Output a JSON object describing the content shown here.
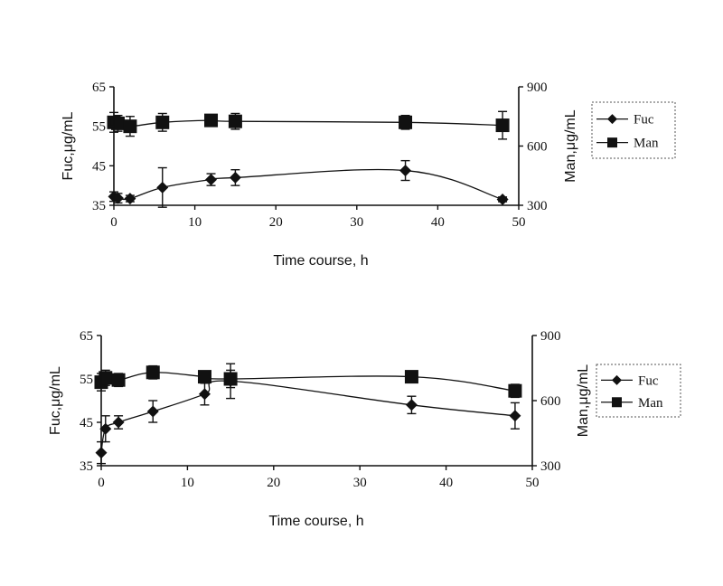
{
  "chart_data": [
    {
      "type": "line",
      "title": "",
      "xlabel": "Time course, h",
      "ylabel": "Fuc,μg/mL",
      "y2label": "Man,μg/mL",
      "xlim": [
        0,
        50
      ],
      "ylim": [
        35,
        65
      ],
      "y2lim": [
        300,
        900
      ],
      "xticks": [
        "0",
        "10",
        "20",
        "30",
        "40",
        "50"
      ],
      "yticks": [
        "35",
        "45",
        "55",
        "65"
      ],
      "y2ticks": [
        "300",
        "600",
        "900"
      ],
      "grid": false,
      "legend_position": "right",
      "series": [
        {
          "name": "Fuc",
          "axis": "left",
          "marker": "diamond",
          "x": [
            0,
            0.5,
            2,
            6,
            12,
            15,
            36,
            48
          ],
          "y": [
            37.2,
            36.8,
            36.7,
            39.5,
            41.5,
            42,
            43.8,
            36.5
          ],
          "err": [
            1.2,
            1.2,
            0.8,
            5,
            1.5,
            2,
            2.5,
            0.6
          ]
        },
        {
          "name": "Man",
          "axis": "right",
          "marker": "square",
          "x": [
            0,
            0.5,
            2,
            6,
            12,
            15,
            36,
            48
          ],
          "y": [
            720,
            715,
            700,
            720,
            730,
            725,
            720,
            705
          ],
          "err": [
            50,
            40,
            50,
            45,
            20,
            40,
            35,
            70
          ]
        }
      ]
    },
    {
      "type": "line",
      "title": "",
      "xlabel": "Time course, h",
      "ylabel": "Fuc,μg/mL",
      "y2label": "Man,μg/mL",
      "xlim": [
        0,
        50
      ],
      "ylim": [
        35,
        65
      ],
      "y2lim": [
        300,
        900
      ],
      "xticks": [
        "0",
        "10",
        "20",
        "30",
        "40",
        "50"
      ],
      "yticks": [
        "35",
        "45",
        "55",
        "65"
      ],
      "y2ticks": [
        "300",
        "600",
        "900"
      ],
      "grid": false,
      "legend_position": "right",
      "series": [
        {
          "name": "Fuc",
          "axis": "left",
          "marker": "diamond",
          "x": [
            0,
            0.5,
            2,
            6,
            12,
            15,
            36,
            48
          ],
          "y": [
            38,
            43.5,
            45,
            47.5,
            51.5,
            54.5,
            49,
            46.5
          ],
          "err": [
            2.5,
            3,
            1.5,
            2.5,
            2.5,
            4,
            2,
            3
          ]
        },
        {
          "name": "Man",
          "axis": "right",
          "marker": "square",
          "x": [
            0,
            0.5,
            2,
            6,
            12,
            15,
            36,
            48
          ],
          "y": [
            685,
            705,
            695,
            730,
            710,
            700,
            710,
            645
          ],
          "err": [
            40,
            35,
            30,
            30,
            25,
            40,
            20,
            30
          ]
        }
      ]
    }
  ]
}
